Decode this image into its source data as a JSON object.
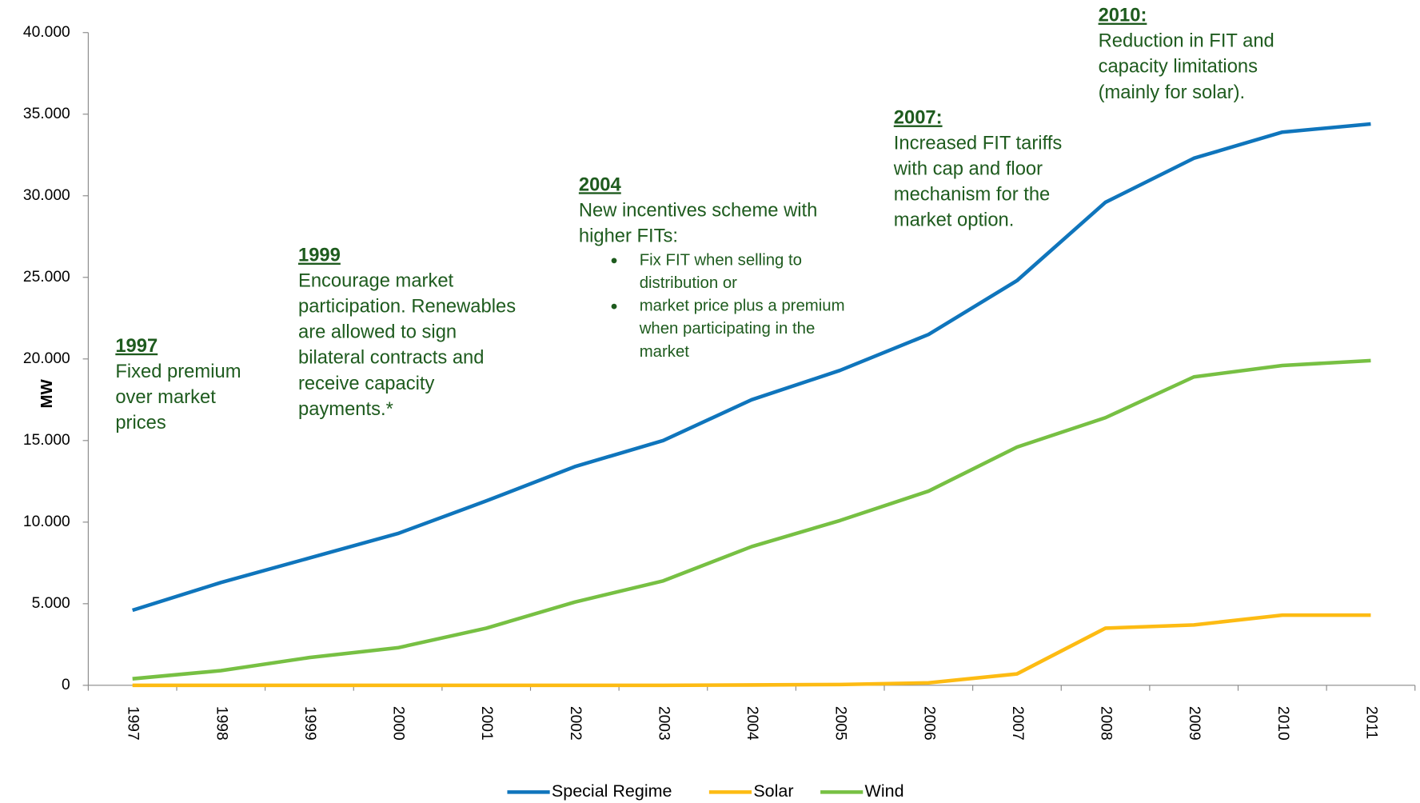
{
  "chart_data": {
    "type": "line",
    "y_label": "MW",
    "categories": [
      "1997",
      "1998",
      "1999",
      "2000",
      "2001",
      "2002",
      "2003",
      "2004",
      "2005",
      "2006",
      "2007",
      "2008",
      "2009",
      "2010",
      "2011"
    ],
    "series": [
      {
        "name": "Special Regime",
        "color": "#0f75bc",
        "values": [
          4600,
          6300,
          7800,
          9300,
          11300,
          13400,
          15000,
          17500,
          19300,
          21500,
          24800,
          29600,
          32300,
          33900,
          34400
        ]
      },
      {
        "name": "Solar",
        "color": "#fdbb13",
        "values": [
          0,
          0,
          0,
          0,
          0,
          0,
          0,
          20,
          50,
          150,
          700,
          3500,
          3700,
          4300,
          4300
        ]
      },
      {
        "name": "Wind",
        "color": "#77c043",
        "values": [
          400,
          900,
          1700,
          2300,
          3500,
          5100,
          6400,
          8500,
          10100,
          11900,
          14600,
          16400,
          18900,
          19600,
          19900
        ]
      }
    ],
    "ylim": [
      0,
      40000
    ],
    "yticks": [
      0,
      {
        "value": 5000,
        "label": "5.000"
      },
      {
        "value": 10000,
        "label": "10.000"
      },
      {
        "value": 15000,
        "label": "15.000"
      },
      {
        "value": 20000,
        "label": "20.000"
      },
      {
        "value": 25000,
        "label": "25.000"
      },
      {
        "value": 30000,
        "label": "30.000"
      },
      {
        "value": 35000,
        "label": "35.000"
      },
      {
        "value": 40000,
        "label": "40.000"
      }
    ],
    "annotations": [
      {
        "title": "1997",
        "lines": [
          "Fixed premium",
          "over market",
          "prices"
        ]
      },
      {
        "title": "1999",
        "lines": [
          "Encourage market",
          "participation. Renewables",
          "are allowed to sign",
          "bilateral contracts and",
          "receive capacity",
          "payments.*"
        ]
      },
      {
        "title": "2004",
        "lines": [
          "New incentives scheme with",
          "higher FITs:"
        ],
        "bullets": [
          [
            "Fix FIT when selling to",
            "distribution or"
          ],
          [
            "market price plus a premium",
            "when participating in the",
            "market"
          ]
        ]
      },
      {
        "title": "2007:",
        "lines": [
          "Increased FIT tariffs",
          "with cap and floor",
          "mechanism for the",
          "market option."
        ]
      },
      {
        "title": "2010:",
        "lines": [
          "Reduction in FIT and",
          "capacity limitations",
          "(mainly for solar)."
        ]
      }
    ]
  }
}
